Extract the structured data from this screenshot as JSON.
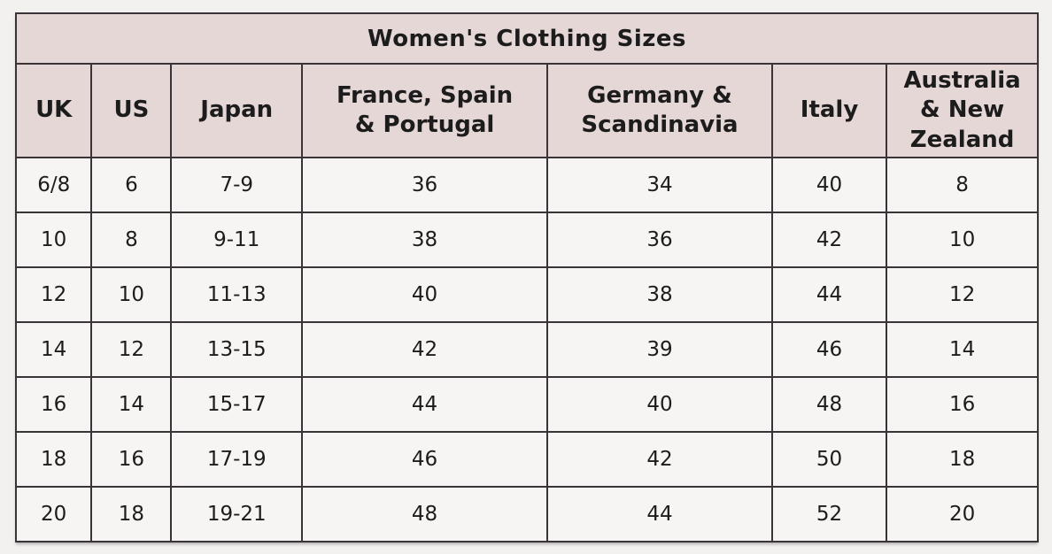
{
  "chart_data": {
    "type": "table",
    "title": "Women's Clothing Sizes",
    "columns": [
      {
        "label": "UK"
      },
      {
        "label": "US"
      },
      {
        "label": "Japan"
      },
      {
        "label": "France, Spain\n& Portugal"
      },
      {
        "label": "Germany &\nScandinavia"
      },
      {
        "label": "Italy"
      },
      {
        "label": "Australia\n& New\nZealand"
      }
    ],
    "rows": [
      [
        "6/8",
        "6",
        "7-9",
        "36",
        "34",
        "40",
        "8"
      ],
      [
        "10",
        "8",
        "9-11",
        "38",
        "36",
        "42",
        "10"
      ],
      [
        "12",
        "10",
        "11-13",
        "40",
        "38",
        "44",
        "12"
      ],
      [
        "14",
        "12",
        "13-15",
        "42",
        "39",
        "46",
        "14"
      ],
      [
        "16",
        "14",
        "15-17",
        "44",
        "40",
        "48",
        "16"
      ],
      [
        "18",
        "16",
        "17-19",
        "46",
        "42",
        "50",
        "18"
      ],
      [
        "20",
        "18",
        "19-21",
        "48",
        "44",
        "52",
        "20"
      ]
    ],
    "colors": {
      "page_bg": "#f2f1ef",
      "header_bg": "#e5d7d6",
      "cell_bg": "#f6f5f3",
      "border": "#3a3438",
      "text": "#1c1c1c"
    },
    "layout": {
      "grid": "all-borders",
      "title_row_span": 7
    }
  }
}
